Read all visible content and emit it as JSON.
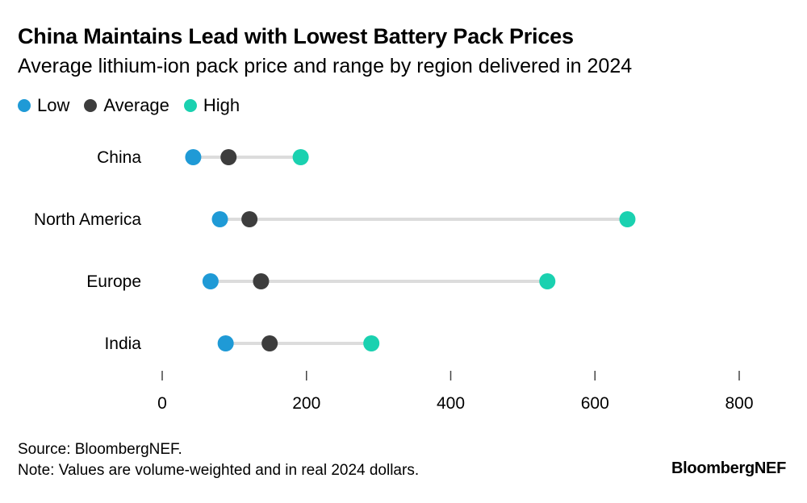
{
  "title": "China Maintains Lead with Lowest Battery Pack Prices",
  "subtitle": "Average lithium-ion pack price and range by region delivered in 2024",
  "legend": [
    {
      "label": "Low",
      "color": "#1f9ad6"
    },
    {
      "label": "Average",
      "color": "#3d3d3d"
    },
    {
      "label": "High",
      "color": "#1ad1b0"
    }
  ],
  "chart_data": {
    "type": "dumbbell",
    "title": "China Maintains Lead with Lowest Battery Pack Prices",
    "subtitle": "Average lithium-ion pack price and range by region delivered in 2024",
    "categories": [
      "China",
      "North America",
      "Europe",
      "India"
    ],
    "series": [
      {
        "name": "Low",
        "color": "#1f9ad6",
        "values": [
          43,
          80,
          67,
          88
        ]
      },
      {
        "name": "Average",
        "color": "#3d3d3d",
        "values": [
          92,
          121,
          137,
          149
        ]
      },
      {
        "name": "High",
        "color": "#1ad1b0",
        "values": [
          192,
          645,
          534,
          290
        ]
      }
    ],
    "xlim": [
      0,
      800
    ],
    "xticks": [
      0,
      200,
      400,
      600,
      800
    ],
    "xlabel": "",
    "ylabel": "",
    "grid": false,
    "legend_position": "top-left"
  },
  "footer": {
    "source": "Source: BloombergNEF.",
    "note": "Note: Values are volume-weighted and in real 2024 dollars.",
    "brand": "BloombergNEF"
  }
}
